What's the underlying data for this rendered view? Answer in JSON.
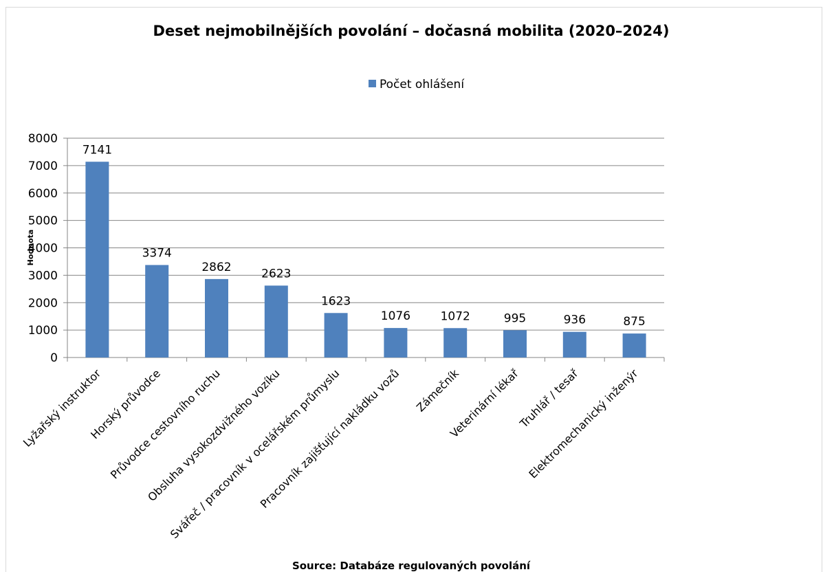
{
  "chart_data": {
    "type": "bar",
    "title": "Deset nejmobilnějších povolání – dočasná mobilita (2020–2024)",
    "y_label": "Hodnota",
    "source": "Source: Databáze regulovaných povolání",
    "categories": [
      "Lyžařský instruktor",
      "Horský průvodce",
      "Průvodce cestovního ruchu",
      "Obsluha vysokozdvižného vozíku",
      "Svářeč / pracovník v ocelářském průmyslu",
      "Pracovník zajišťující nakládku vozů",
      "Zámečník",
      "Veterinární lékař",
      "Truhlář / tesař",
      "Elektromechanický inženýr"
    ],
    "series": [
      {
        "name": "Počet ohlášení",
        "color": "#4f81bd",
        "values": [
          7141,
          3374,
          2862,
          2623,
          1623,
          1076,
          1072,
          995,
          936,
          875
        ]
      }
    ],
    "ylim": [
      0,
      8000
    ],
    "yticks": [
      0,
      1000,
      2000,
      3000,
      4000,
      5000,
      6000,
      7000,
      8000
    ],
    "grid": true,
    "legend": "top"
  }
}
